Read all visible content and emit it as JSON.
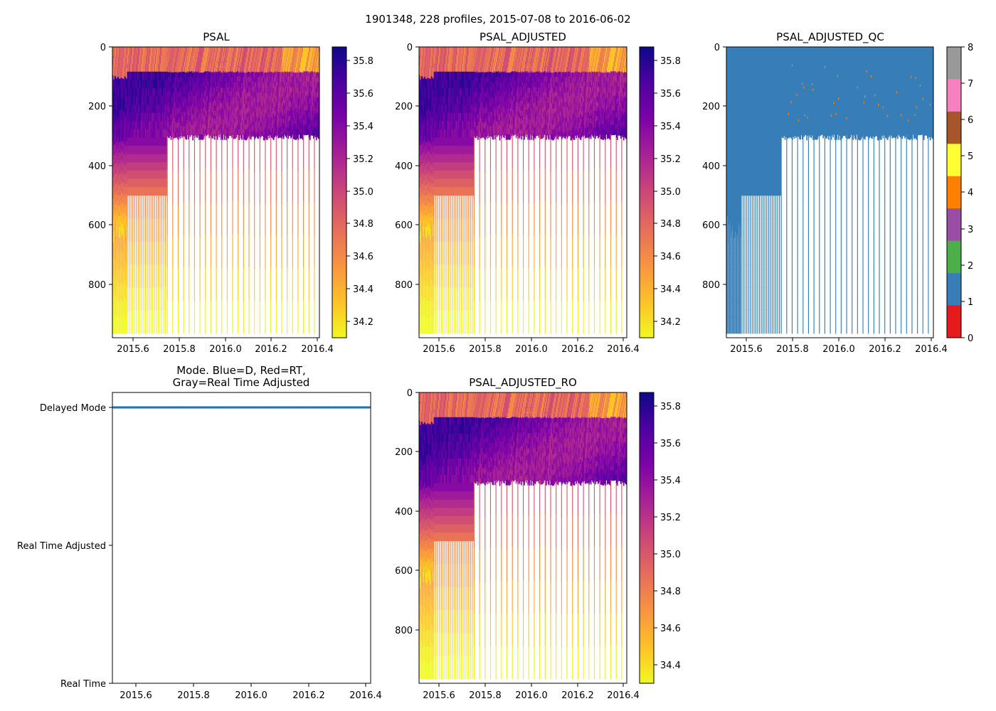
{
  "figure_title": "1901348, 228 profiles, 2015-07-08 to 2016-06-02",
  "colors": {
    "mode_delayed": "#1f77b4",
    "qc_palette": [
      "#e41a1c",
      "#377eb8",
      "#4daf4a",
      "#984ea3",
      "#ff7f00",
      "#ffff33",
      "#a65628",
      "#f781bf",
      "#999999"
    ]
  },
  "chart_data": [
    {
      "type": "heatmap",
      "title": "PSAL",
      "xlim": [
        2015.52,
        2016.42
      ],
      "xticks": [
        "2015.6",
        "2015.8",
        "2016.0",
        "2016.2",
        "2016.4"
      ],
      "ylim": [
        975,
        0
      ],
      "yticks": [
        "0",
        "200",
        "400",
        "600",
        "800"
      ],
      "colormap": "plasma_r",
      "clim": [
        34.1,
        35.9
      ],
      "colorbar_ticks": [
        "34.2",
        "34.4",
        "34.6",
        "34.8",
        "35.0",
        "35.2",
        "35.4",
        "35.6",
        "35.8"
      ]
    },
    {
      "type": "heatmap",
      "title": "PSAL_ADJUSTED",
      "xlim": [
        2015.52,
        2016.42
      ],
      "xticks": [
        "2015.6",
        "2015.8",
        "2016.0",
        "2016.2",
        "2016.4"
      ],
      "ylim": [
        975,
        0
      ],
      "yticks": [
        "0",
        "200",
        "400",
        "600",
        "800"
      ],
      "colormap": "plasma_r",
      "clim": [
        34.1,
        35.9
      ],
      "colorbar_ticks": [
        "34.2",
        "34.4",
        "34.6",
        "34.8",
        "35.0",
        "35.2",
        "35.4",
        "35.6",
        "35.8"
      ]
    },
    {
      "type": "heatmap",
      "title": "PSAL_ADJUSTED_QC",
      "xlim": [
        2015.52,
        2016.42
      ],
      "xticks": [
        "2015.6",
        "2015.8",
        "2016.0",
        "2016.2",
        "2016.4"
      ],
      "ylim": [
        975,
        0
      ],
      "yticks": [
        "0",
        "200",
        "400",
        "600",
        "800"
      ],
      "colormap": "Set1",
      "clim": [
        0,
        8
      ],
      "colorbar_ticks": [
        "0",
        "1",
        "2",
        "3",
        "4",
        "5",
        "6",
        "7",
        "8"
      ],
      "dominant_value": 1
    },
    {
      "type": "scatter",
      "title_line1": "Mode. Blue=D, Red=RT,",
      "title_line2": "Gray=Real Time Adjusted",
      "xlim": [
        2015.52,
        2016.42
      ],
      "xticks": [
        "2015.6",
        "2015.8",
        "2016.0",
        "2016.2",
        "2016.4"
      ],
      "yticks": [
        "Delayed Mode",
        "Real Time Adjusted",
        "Real Time"
      ],
      "profiles": 228,
      "mode": "Delayed Mode"
    },
    {
      "type": "heatmap",
      "title": "PSAL_ADJUSTED_RO",
      "xlim": [
        2015.52,
        2016.42
      ],
      "xticks": [
        "2015.6",
        "2015.8",
        "2016.0",
        "2016.2",
        "2016.4"
      ],
      "ylim": [
        975,
        0
      ],
      "yticks": [
        "0",
        "200",
        "400",
        "600",
        "800"
      ],
      "colormap": "plasma_r",
      "clim": [
        34.3,
        35.9
      ],
      "colorbar_ticks": [
        "34.4",
        "34.6",
        "34.8",
        "35.0",
        "35.2",
        "35.4",
        "35.6",
        "35.8"
      ]
    }
  ]
}
